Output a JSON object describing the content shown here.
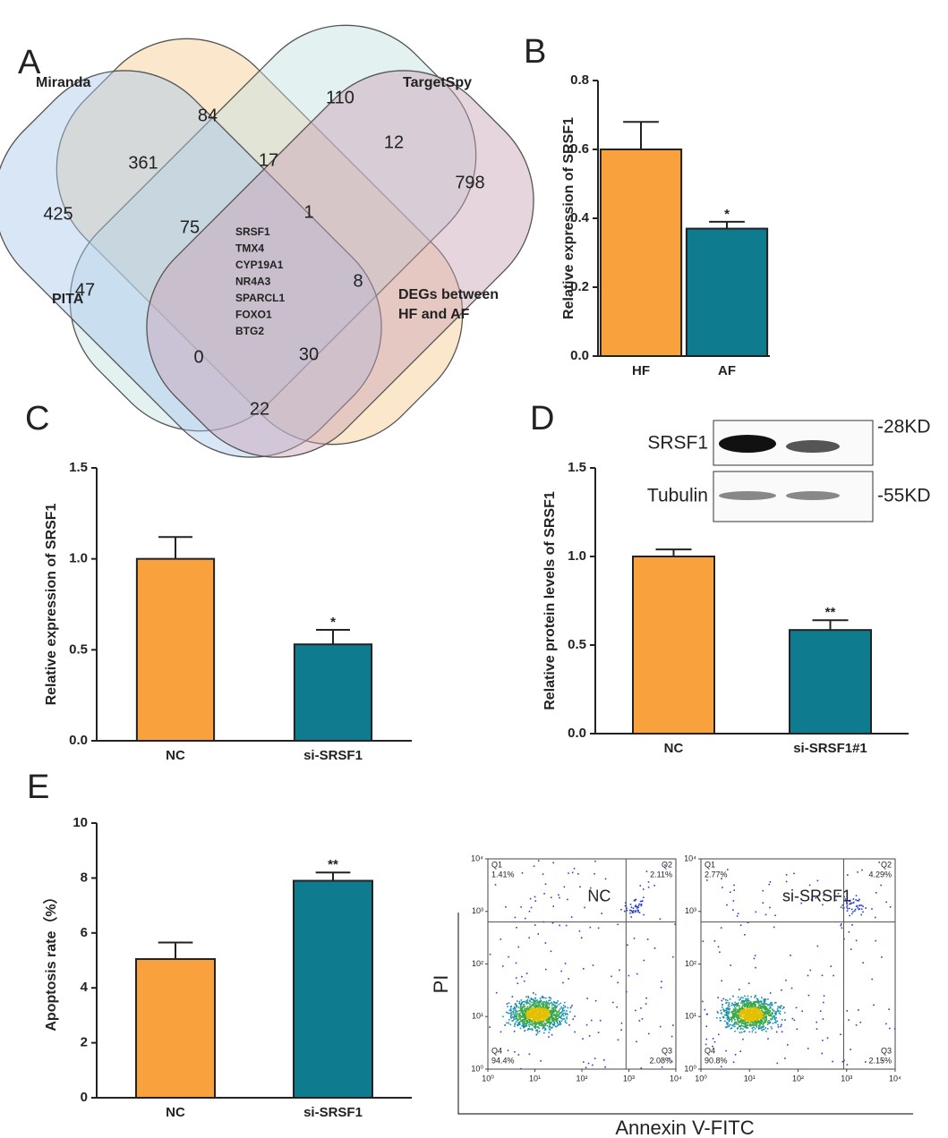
{
  "panels": [
    "A",
    "B",
    "C",
    "D",
    "E"
  ],
  "venn": {
    "sets": [
      "Miranda",
      "TargetSpy",
      "PITA",
      "DEGs between",
      "HF and AF"
    ],
    "regions": [
      84,
      110,
      361,
      17,
      12,
      798,
      425,
      75,
      1,
      47,
      8,
      0,
      30,
      22
    ],
    "genes": [
      "SRSF1",
      "TMX4",
      "CYP19A1",
      "NR4A3",
      "SPARCL1",
      "FOXO1",
      "BTG2"
    ]
  },
  "chart_data": [
    {
      "type": "bar",
      "panel": "B",
      "categories": [
        "HF",
        "AF"
      ],
      "values": [
        0.6,
        0.37
      ],
      "errors": [
        0.08,
        0.02
      ],
      "significance": [
        null,
        "*"
      ],
      "colors": [
        "#f9a13d",
        "#0f7b8f"
      ],
      "ylabel": "Relative expression of  SRSF1",
      "ylim": [
        0,
        0.8
      ],
      "yticks": [
        {
          "value": 0,
          "label": "0.0"
        },
        {
          "value": 0.2,
          "label": "0.2"
        },
        {
          "value": 0.4,
          "label": "0.4"
        },
        {
          "value": 0.6,
          "label": "0.6"
        },
        {
          "value": 0.8,
          "label": "0.8"
        }
      ]
    },
    {
      "type": "bar",
      "panel": "C",
      "categories": [
        "NC",
        "si-SRSF1"
      ],
      "values": [
        1.0,
        0.53
      ],
      "errors": [
        0.12,
        0.08
      ],
      "significance": [
        null,
        "*"
      ],
      "colors": [
        "#f9a13d",
        "#0f7b8f"
      ],
      "ylabel": "Relative expression of SRSF1",
      "ylim": [
        0,
        1.5
      ],
      "yticks": [
        {
          "value": 0,
          "label": "0.0"
        },
        {
          "value": 0.5,
          "label": "0.5"
        },
        {
          "value": 1,
          "label": "1.0"
        },
        {
          "value": 1.5,
          "label": "1.5"
        }
      ]
    },
    {
      "type": "bar",
      "panel": "D",
      "categories": [
        "NC",
        "si-SRSF1#1"
      ],
      "values": [
        1.0,
        0.585
      ],
      "errors": [
        0.04,
        0.055
      ],
      "significance": [
        null,
        "**"
      ],
      "colors": [
        "#f9a13d",
        "#0f7b8f"
      ],
      "ylabel": "Relative protein levels of SRSF1",
      "ylim": [
        0,
        1.5
      ],
      "yticks": [
        {
          "value": 0,
          "label": "0.0"
        },
        {
          "value": 0.5,
          "label": "0.5"
        },
        {
          "value": 1,
          "label": "1.0"
        },
        {
          "value": 1.5,
          "label": "1.5"
        }
      ]
    },
    {
      "type": "bar",
      "panel": "E",
      "categories": [
        "NC",
        "si-SRSF1"
      ],
      "values": [
        5.05,
        7.9
      ],
      "errors": [
        0.6,
        0.3
      ],
      "significance": [
        null,
        "**"
      ],
      "colors": [
        "#f9a13d",
        "#0f7b8f"
      ],
      "ylabel": "Apoptosis rate（%）",
      "ylim": [
        0,
        10
      ],
      "yticks": [
        0,
        2,
        4,
        6,
        8,
        10
      ]
    }
  ],
  "western_blot": {
    "proteins": [
      "SRSF1",
      "Tubulin"
    ],
    "sizes": [
      "-28KD",
      "-55KD"
    ]
  },
  "flow_cytometry": {
    "xlabel": "Annexin V-FITC",
    "ylabel": "PI",
    "log": true,
    "xlim": [
      1,
      10000
    ],
    "ylim": [
      1,
      10000
    ],
    "ticks": [
      {
        "value": 1,
        "label": "10⁰"
      },
      {
        "value": 10,
        "label": "10¹"
      },
      {
        "value": 100,
        "label": "10²"
      },
      {
        "value": 1000,
        "label": "10³"
      },
      {
        "value": 10000,
        "label": "10⁴"
      }
    ],
    "plots": [
      {
        "name": "NC",
        "quadrants": [
          "Q1",
          "Q2",
          "Q3",
          "Q4"
        ],
        "percents": [
          "1.41%",
          "2.11%",
          "2.08%",
          "94.4%"
        ]
      },
      {
        "name": "si-SRSF1",
        "quadrants": [
          "Q1",
          "Q2",
          "Q3",
          "Q4"
        ],
        "percents": [
          "2.77%",
          "4.29%",
          "2.15%",
          "90.8%"
        ]
      }
    ]
  }
}
